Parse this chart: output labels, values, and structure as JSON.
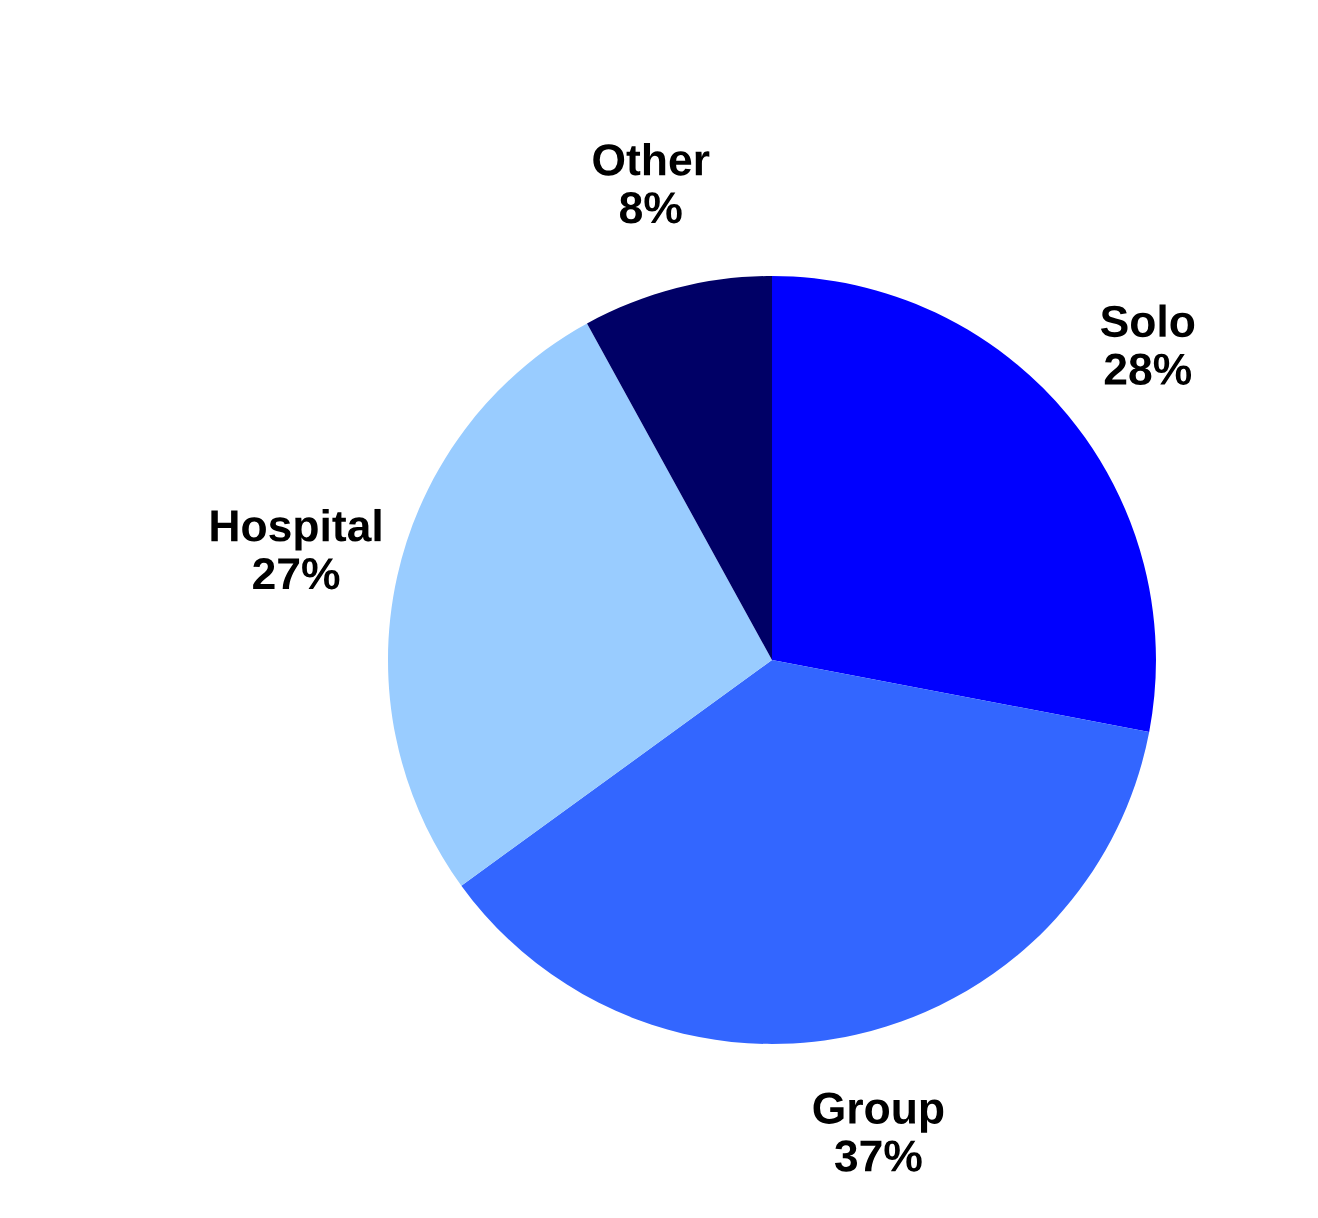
{
  "chart_data": {
    "type": "pie",
    "categories": [
      "Solo",
      "Group",
      "Hospital",
      "Other"
    ],
    "values": [
      28,
      37,
      27,
      8
    ],
    "colors": [
      "#0000ff",
      "#3366ff",
      "#99ccff",
      "#000066"
    ],
    "value_labels": [
      "28%",
      "37%",
      "27%",
      "8%"
    ]
  }
}
